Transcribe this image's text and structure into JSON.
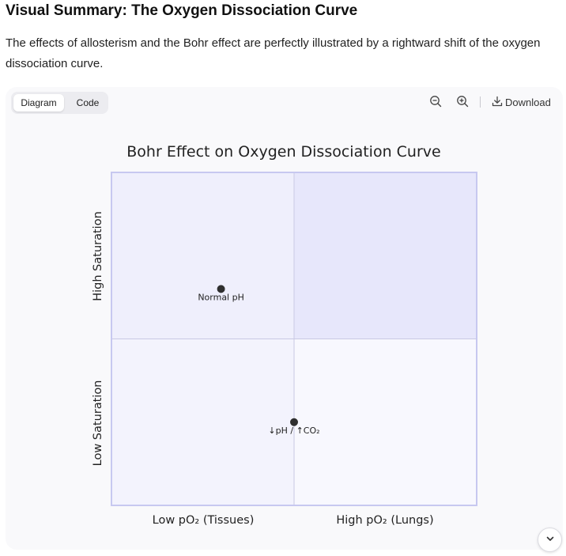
{
  "heading": "Visual Summary: The Oxygen Dissociation Curve",
  "intro": "The effects of allosterism and the Bohr effect are perfectly illustrated by a rightward shift of the oxygen dissociation curve.",
  "toolbar": {
    "tabs": [
      "Diagram",
      "Code"
    ],
    "active_tab": "Diagram",
    "download_label": "Download",
    "icons": [
      "zoom-out-icon",
      "zoom-in-icon",
      "download-icon"
    ]
  },
  "chart_data": {
    "type": "scatter",
    "title": "Bohr Effect on Oxygen Dissociation Curve",
    "x_axis": {
      "low_label": "Low pO₂ (Tissues)",
      "high_label": "High pO₂ (Lungs)",
      "range": [
        0,
        1
      ]
    },
    "y_axis": {
      "low_label": "Low Saturation",
      "high_label": "High Saturation",
      "range": [
        0,
        1
      ]
    },
    "quadrants": [
      "upper-left",
      "upper-right",
      "lower-left",
      "lower-right"
    ],
    "points": [
      {
        "label": "Normal pH",
        "x": 0.3,
        "y": 0.65
      },
      {
        "label": "↓pH / ↑CO₂",
        "x": 0.5,
        "y": 0.25
      }
    ],
    "colors": {
      "plot_border": "#c7c8f0",
      "upper_left": "#efeffc",
      "upper_right": "#e7e7fb",
      "lower_left": "#f3f3fd",
      "lower_right": "#f8f8fe",
      "point": "#2f2f2f"
    }
  },
  "scroll_icon": "chevron-down-icon"
}
